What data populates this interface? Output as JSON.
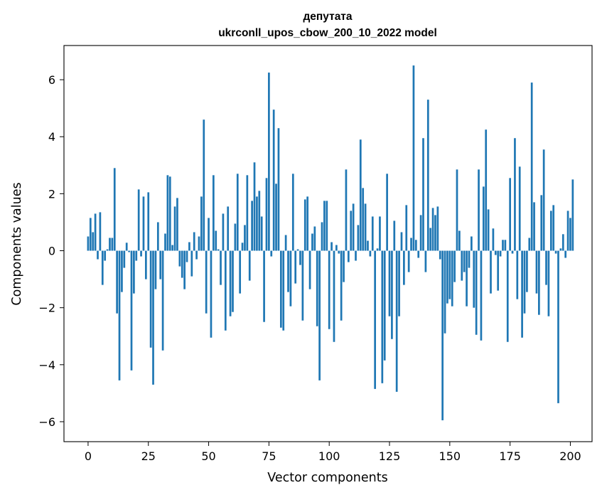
{
  "chart_data": {
    "type": "bar",
    "title_lines": [
      "депутата",
      "ukrconll_upos_cbow_200_10_2022 model"
    ],
    "xlabel": "Vector components",
    "ylabel": "Components values",
    "xlim": [
      -10,
      209
    ],
    "ylim": [
      -6.7,
      7.2
    ],
    "xticks": [
      0,
      25,
      50,
      75,
      100,
      125,
      150,
      175,
      200
    ],
    "yticks": [
      -6,
      -4,
      -2,
      0,
      2,
      4,
      6
    ],
    "xtick_labels": [
      "0",
      "25",
      "50",
      "75",
      "100",
      "125",
      "150",
      "175",
      "200"
    ],
    "ytick_labels": [
      "−6",
      "−4",
      "−2",
      "0",
      "2",
      "4",
      "6"
    ],
    "grid": false,
    "bar_color": "#1f77b4",
    "values": [
      0.5,
      1.15,
      0.65,
      1.3,
      -0.3,
      1.35,
      -1.2,
      -0.35,
      0.05,
      0.45,
      0.45,
      2.9,
      -2.2,
      -4.55,
      -1.45,
      -0.6,
      0.28,
      -0.05,
      -4.2,
      -1.5,
      -0.35,
      2.15,
      -0.2,
      1.9,
      -1.0,
      2.05,
      -3.4,
      -4.7,
      -1.35,
      1.0,
      -1.0,
      -3.5,
      0.6,
      2.65,
      2.6,
      0.2,
      1.55,
      1.85,
      -0.55,
      -0.95,
      -1.35,
      -0.4,
      0.3,
      -0.9,
      0.65,
      -0.3,
      0.5,
      1.9,
      4.6,
      -2.2,
      1.15,
      -3.05,
      2.65,
      0.7,
      0.05,
      -1.2,
      1.3,
      -2.8,
      1.55,
      -2.3,
      -2.15,
      0.95,
      2.7,
      -1.5,
      0.28,
      0.9,
      2.65,
      -1.05,
      1.75,
      3.1,
      1.9,
      2.1,
      1.2,
      -2.5,
      2.55,
      6.25,
      -0.2,
      4.95,
      2.35,
      4.3,
      -2.7,
      -2.8,
      0.55,
      -1.45,
      -1.95,
      2.7,
      -1.15,
      0.05,
      -0.5,
      -2.45,
      1.8,
      1.9,
      -1.35,
      0.6,
      0.85,
      -2.65,
      -4.55,
      1.0,
      1.75,
      1.75,
      -2.75,
      0.3,
      -3.2,
      0.2,
      -0.1,
      -2.45,
      -1.1,
      2.85,
      -0.4,
      1.4,
      1.65,
      -0.35,
      0.9,
      3.9,
      2.2,
      1.65,
      0.35,
      -0.2,
      1.2,
      -4.85,
      0.08,
      1.2,
      -4.65,
      -3.85,
      2.7,
      -2.3,
      -3.1,
      1.05,
      -4.95,
      -2.3,
      0.65,
      -1.2,
      1.6,
      -0.75,
      0.45,
      6.5,
      0.38,
      -0.25,
      1.25,
      3.95,
      -0.75,
      5.3,
      0.8,
      1.5,
      1.25,
      1.55,
      -0.3,
      -5.95,
      -2.9,
      -1.85,
      -1.7,
      -1.95,
      -1.1,
      2.85,
      0.7,
      -1.05,
      -0.75,
      -1.95,
      -0.6,
      0.5,
      -2.0,
      -2.95,
      2.85,
      -3.15,
      2.25,
      4.25,
      1.45,
      -1.5,
      0.78,
      -0.15,
      -1.4,
      -0.2,
      0.38,
      0.38,
      -3.2,
      2.55,
      -0.1,
      3.95,
      -1.7,
      2.95,
      -3.05,
      -2.2,
      -1.45,
      0.45,
      5.9,
      1.7,
      -1.5,
      -2.25,
      1.95,
      3.55,
      -1.2,
      -2.3,
      1.4,
      1.6,
      -0.1,
      -5.35,
      0.08,
      0.58,
      -0.25,
      1.4,
      1.15,
      2.5
    ]
  }
}
